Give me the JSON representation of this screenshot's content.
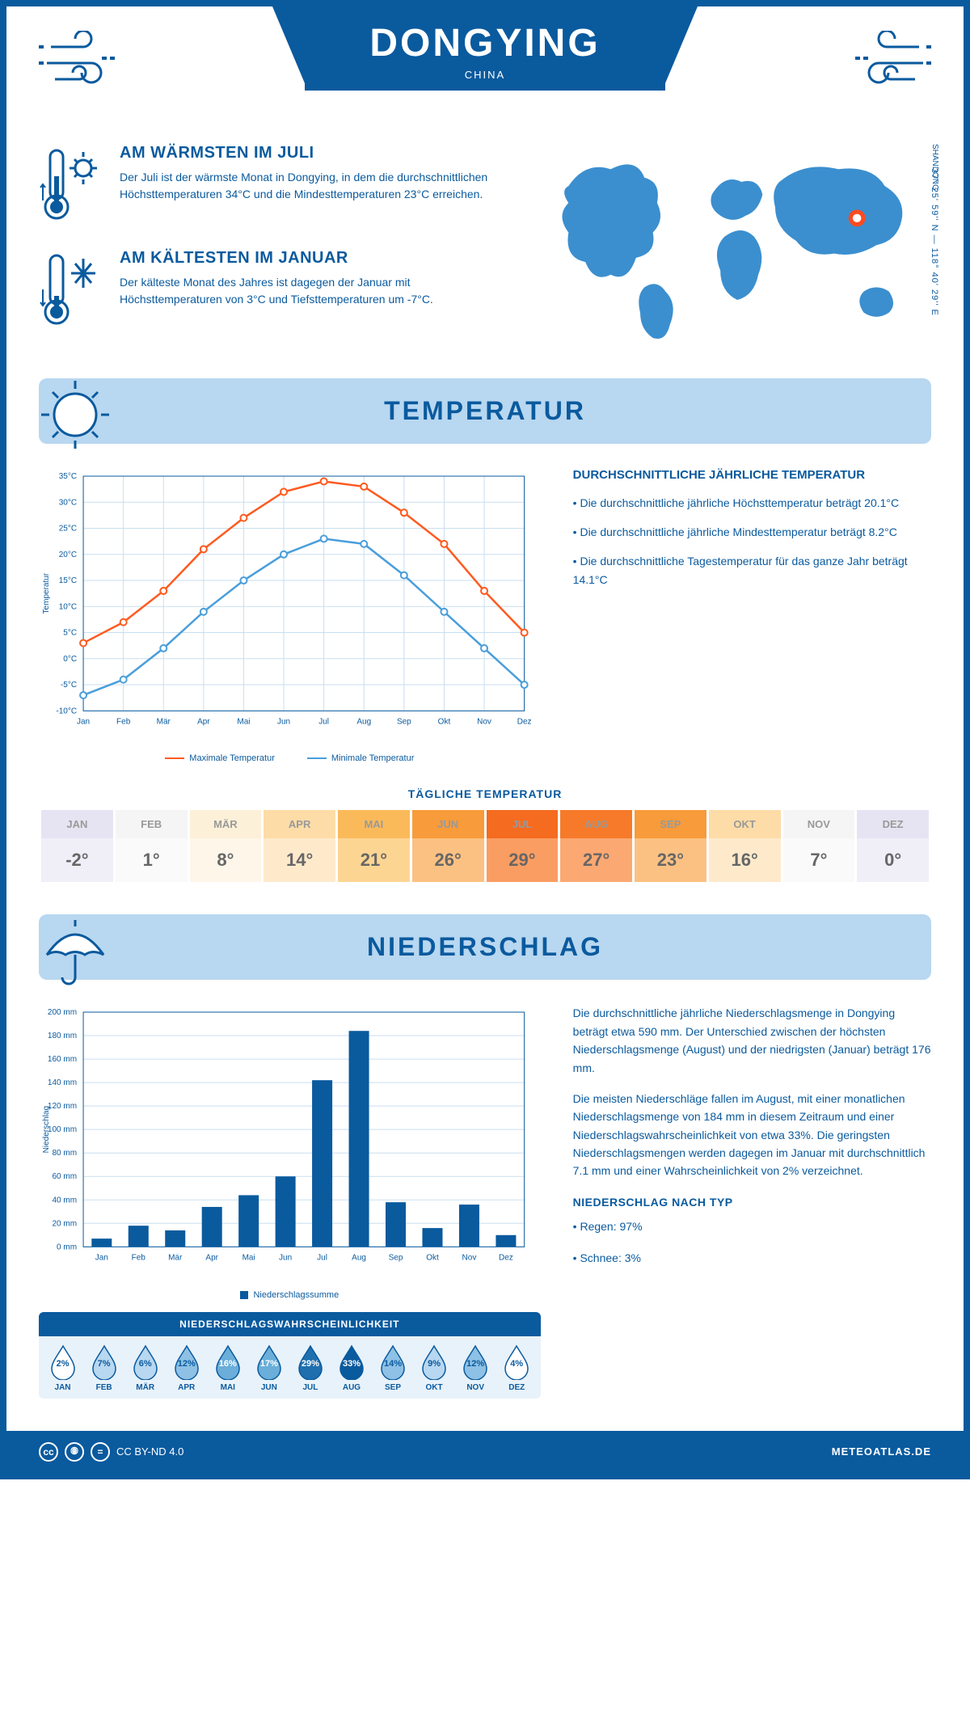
{
  "header": {
    "city": "DONGYING",
    "country": "CHINA",
    "region": "SHANDONG",
    "coords": "37° 25' 59'' N — 118° 40' 29'' E"
  },
  "facts": {
    "warm": {
      "title": "AM WÄRMSTEN IM JULI",
      "text": "Der Juli ist der wärmste Monat in Dongying, in dem die durchschnittlichen Höchsttemperaturen 34°C und die Mindesttemperaturen 23°C erreichen."
    },
    "cold": {
      "title": "AM KÄLTESTEN IM JANUAR",
      "text": "Der kälteste Monat des Jahres ist dagegen der Januar mit Höchsttemperaturen von 3°C und Tiefsttemperaturen um -7°C."
    }
  },
  "sections": {
    "temp": "TEMPERATUR",
    "precip": "NIEDERSCHLAG"
  },
  "temp_chart": {
    "months": [
      "Jan",
      "Feb",
      "Mär",
      "Apr",
      "Mai",
      "Jun",
      "Jul",
      "Aug",
      "Sep",
      "Okt",
      "Nov",
      "Dez"
    ],
    "ylabel": "Temperatur",
    "ymin": -10,
    "ymax": 35,
    "ystep": 5,
    "max_temp": [
      3,
      7,
      13,
      21,
      27,
      32,
      34,
      33,
      28,
      22,
      13,
      5
    ],
    "min_temp": [
      -7,
      -4,
      2,
      9,
      15,
      20,
      23,
      22,
      16,
      9,
      2,
      -5
    ],
    "max_color": "#ff5a1f",
    "min_color": "#4a9edb",
    "grid_color": "#c9dff0",
    "max_label": "Maximale Temperatur",
    "min_label": "Minimale Temperatur"
  },
  "temp_text": {
    "heading": "DURCHSCHNITTLICHE JÄHRLICHE TEMPERATUR",
    "b1": "• Die durchschnittliche jährliche Höchsttemperatur beträgt 20.1°C",
    "b2": "• Die durchschnittliche jährliche Mindesttemperatur beträgt 8.2°C",
    "b3": "• Die durchschnittliche Tagestemperatur für das ganze Jahr beträgt 14.1°C"
  },
  "daily": {
    "title": "TÄGLICHE TEMPERATUR",
    "months": [
      "JAN",
      "FEB",
      "MÄR",
      "APR",
      "MAI",
      "JUN",
      "JUL",
      "AUG",
      "SEP",
      "OKT",
      "NOV",
      "DEZ"
    ],
    "values": [
      "-2°",
      "1°",
      "8°",
      "14°",
      "21°",
      "26°",
      "29°",
      "27°",
      "23°",
      "16°",
      "7°",
      "0°"
    ],
    "head_colors": [
      "#e6e4f2",
      "#f5f5f5",
      "#fdf0d9",
      "#fddca8",
      "#fbba5a",
      "#f89b3a",
      "#f56b1f",
      "#f67a2a",
      "#f89b3a",
      "#fddca8",
      "#f5f5f5",
      "#e6e4f2"
    ],
    "val_colors": [
      "#f0eef7",
      "#fafafa",
      "#fef6e9",
      "#feeacb",
      "#fdd593",
      "#fbc182",
      "#fa9d62",
      "#fba872",
      "#fbc182",
      "#feeacb",
      "#fafafa",
      "#f0eef7"
    ]
  },
  "precip_chart": {
    "months": [
      "Jan",
      "Feb",
      "Mär",
      "Apr",
      "Mai",
      "Jun",
      "Jul",
      "Aug",
      "Sep",
      "Okt",
      "Nov",
      "Dez"
    ],
    "ylabel": "Niederschlag",
    "ymax": 200,
    "ystep": 20,
    "values": [
      7,
      18,
      14,
      34,
      44,
      60,
      142,
      184,
      38,
      16,
      36,
      10
    ],
    "bar_color": "#0a5a9e",
    "grid_color": "#c9dff0",
    "legend": "Niederschlagssumme"
  },
  "prob": {
    "title": "NIEDERSCHLAGSWAHRSCHEINLICHKEIT",
    "months": [
      "JAN",
      "FEB",
      "MÄR",
      "APR",
      "MAI",
      "JUN",
      "JUL",
      "AUG",
      "SEP",
      "OKT",
      "NOV",
      "DEZ"
    ],
    "values": [
      "2%",
      "7%",
      "6%",
      "12%",
      "16%",
      "17%",
      "29%",
      "33%",
      "14%",
      "9%",
      "12%",
      "4%"
    ],
    "fills": [
      "#ffffff",
      "#b8d7f0",
      "#b8d7f0",
      "#8ec1e5",
      "#6aaed9",
      "#6aaed9",
      "#1f6fae",
      "#0a5a9e",
      "#8ec1e5",
      "#b8d7f0",
      "#8ec1e5",
      "#ffffff"
    ],
    "text_colors": [
      "#0a5a9e",
      "#0a5a9e",
      "#0a5a9e",
      "#0a5a9e",
      "#ffffff",
      "#ffffff",
      "#ffffff",
      "#ffffff",
      "#0a5a9e",
      "#0a5a9e",
      "#0a5a9e",
      "#0a5a9e"
    ]
  },
  "precip_text": {
    "p1": "Die durchschnittliche jährliche Niederschlagsmenge in Dongying beträgt etwa 590 mm. Der Unterschied zwischen der höchsten Niederschlagsmenge (August) und der niedrigsten (Januar) beträgt 176 mm.",
    "p2": "Die meisten Niederschläge fallen im August, mit einer monatlichen Niederschlagsmenge von 184 mm in diesem Zeitraum und einer Niederschlagswahrscheinlichkeit von etwa 33%. Die geringsten Niederschlagsmengen werden dagegen im Januar mit durchschnittlich 7.1 mm und einer Wahrscheinlichkeit von 2% verzeichnet.",
    "type_heading": "NIEDERSCHLAG NACH TYP",
    "type1": "• Regen: 97%",
    "type2": "• Schnee: 3%"
  },
  "footer": {
    "license": "CC BY-ND 4.0",
    "site": "METEOATLAS.DE"
  }
}
